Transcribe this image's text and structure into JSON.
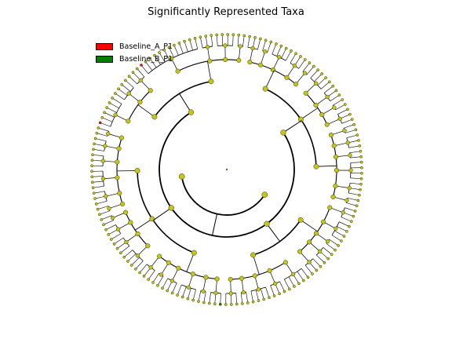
{
  "title": "Significantly Represented Taxa",
  "legend": [
    {
      "label": "Baseline_A_P1",
      "color": "#ff0000"
    },
    {
      "label": "Baseline_B_P1",
      "color": "#008000"
    }
  ],
  "colors": {
    "node_default": "#c4c41a",
    "node_stroke": "#3a3a00",
    "branch": "#000000"
  },
  "tree": {
    "layout": "circular-cladogram",
    "levels": 6,
    "clades": [
      {
        "children": [
          3,
          2,
          4,
          3,
          2
        ]
      },
      {
        "children": [
          4,
          3,
          2,
          3
        ]
      },
      {
        "children": [
          2,
          3,
          2,
          4,
          3,
          2
        ]
      },
      {
        "children": [
          3,
          4,
          2,
          3,
          3
        ]
      },
      {
        "children": [
          5,
          3,
          4,
          2,
          3
        ]
      },
      {
        "children": [
          3,
          2,
          4,
          3,
          2,
          3
        ]
      },
      {
        "children": [
          4,
          3,
          3,
          2
        ]
      },
      {
        "children": [
          2,
          3,
          4,
          3,
          3,
          2
        ]
      },
      {
        "children": [
          6,
          4,
          3
        ]
      },
      {
        "children": [
          12,
          3,
          4,
          2
        ]
      }
    ],
    "highlighted_leaves": [
      {
        "clade": 9,
        "color": "#ff0000"
      },
      {
        "clade": 8,
        "color": "#ff0000"
      },
      {
        "clade": 5,
        "color": "#008000"
      }
    ]
  }
}
